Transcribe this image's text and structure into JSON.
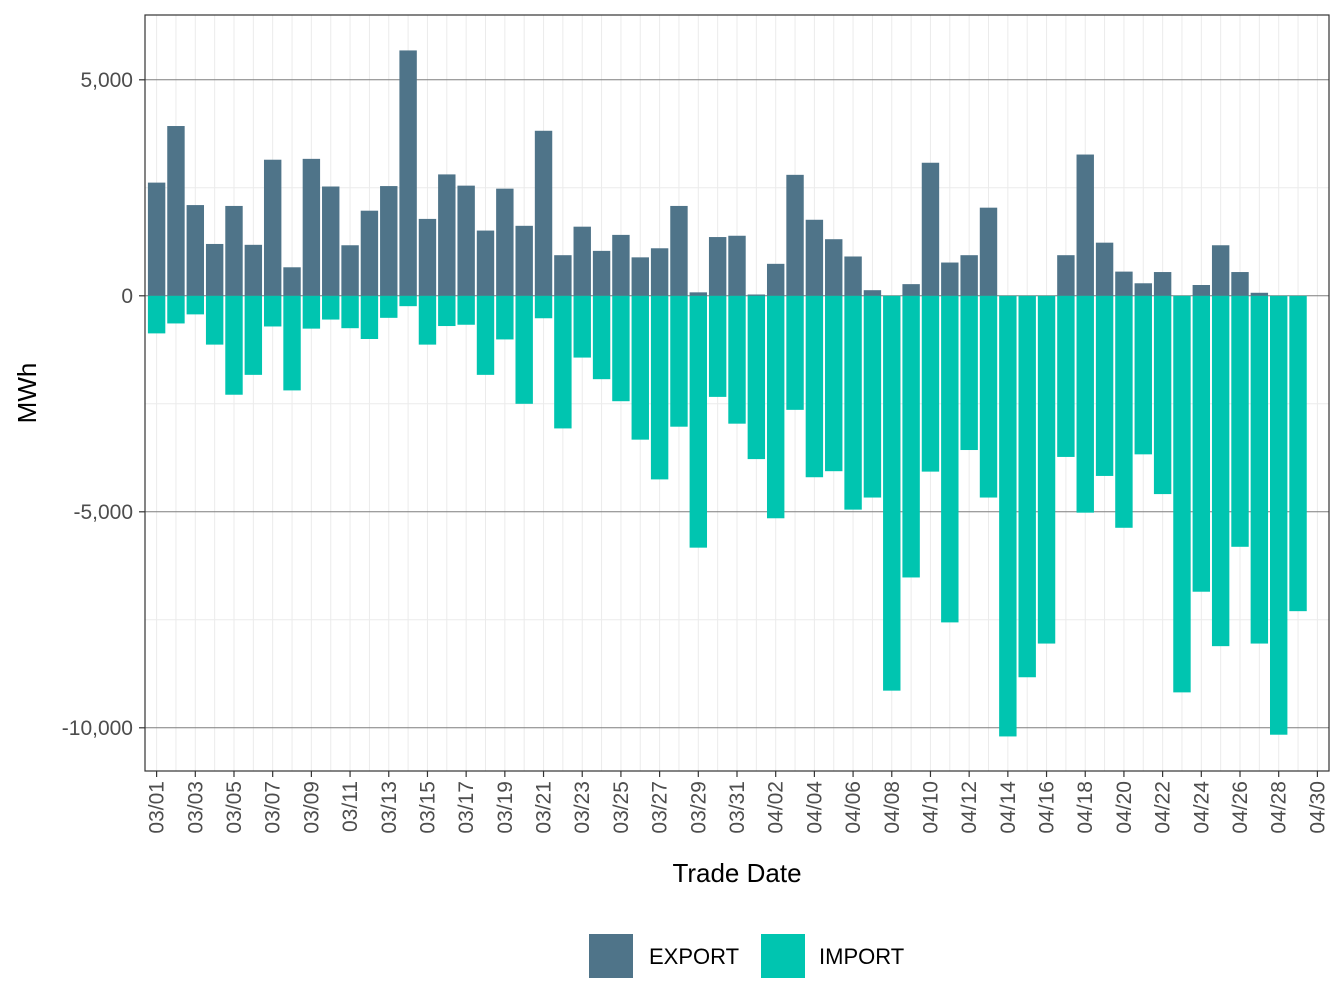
{
  "chart_data": {
    "type": "bar",
    "stacked": true,
    "title": "",
    "xlabel": "Trade Date",
    "ylabel": "MWh",
    "ylim": [
      -11000,
      6500
    ],
    "yticks": [
      5000,
      0,
      -5000,
      -10000
    ],
    "ytick_labels": [
      "5,000",
      "0",
      "-5,000",
      "-10,000"
    ],
    "grid": true,
    "legend_position": "bottom",
    "categories": [
      "03/01",
      "03/02",
      "03/03",
      "03/04",
      "03/05",
      "03/06",
      "03/07",
      "03/08",
      "03/09",
      "03/10",
      "03/11",
      "03/12",
      "03/13",
      "03/14",
      "03/15",
      "03/16",
      "03/17",
      "03/18",
      "03/19",
      "03/20",
      "03/21",
      "03/22",
      "03/23",
      "03/24",
      "03/25",
      "03/26",
      "03/27",
      "03/28",
      "03/29",
      "03/30",
      "03/31",
      "04/01",
      "04/02",
      "04/03",
      "04/04",
      "04/05",
      "04/06",
      "04/07",
      "04/08",
      "04/09",
      "04/10",
      "04/11",
      "04/12",
      "04/13",
      "04/14",
      "04/15",
      "04/16",
      "04/17",
      "04/18",
      "04/19",
      "04/20",
      "04/21",
      "04/22",
      "04/23",
      "04/24",
      "04/25",
      "04/26",
      "04/27",
      "04/28",
      "04/29",
      "04/30"
    ],
    "xtick_labels": [
      "03/01",
      "03/03",
      "03/05",
      "03/07",
      "03/09",
      "03/11",
      "03/13",
      "03/15",
      "03/17",
      "03/19",
      "03/21",
      "03/23",
      "03/25",
      "03/27",
      "03/29",
      "03/31",
      "04/02",
      "04/04",
      "04/06",
      "04/08",
      "04/10",
      "04/12",
      "04/14",
      "04/16",
      "04/18",
      "04/20",
      "04/22",
      "04/24",
      "04/26",
      "04/28",
      "04/30"
    ],
    "series": [
      {
        "name": "EXPORT",
        "color": "#4f7489",
        "values": [
          2620,
          3930,
          2100,
          1200,
          2080,
          1180,
          3150,
          660,
          3170,
          2530,
          1170,
          1970,
          2540,
          5680,
          1780,
          2810,
          2550,
          1510,
          2480,
          1620,
          3820,
          940,
          1600,
          1040,
          1410,
          890,
          1100,
          2080,
          80,
          1360,
          1390,
          30,
          740,
          2800,
          1760,
          1310,
          910,
          130,
          0,
          270,
          3080,
          770,
          940,
          2040,
          0,
          0,
          0,
          940,
          3270,
          1230,
          560,
          290,
          550,
          0,
          250,
          1170,
          550,
          70,
          0,
          0,
          0
        ]
      },
      {
        "name": "IMPORT",
        "color": "#00c5b0",
        "values": [
          -870,
          -640,
          -430,
          -1130,
          -2290,
          -1830,
          -710,
          -2190,
          -760,
          -550,
          -750,
          -1000,
          -510,
          -240,
          -1130,
          -700,
          -670,
          -1830,
          -1010,
          -2500,
          -520,
          -3070,
          -1430,
          -1930,
          -2440,
          -3330,
          -4250,
          -3030,
          -5830,
          -2340,
          -2960,
          -3780,
          -5150,
          -2640,
          -4200,
          -4060,
          -4950,
          -4670,
          -9140,
          -6520,
          -4070,
          -7560,
          -3570,
          -4670,
          -10200,
          -8830,
          -8050,
          -3730,
          -5020,
          -4170,
          -5370,
          -3670,
          -4590,
          -9180,
          -6850,
          -8110,
          -5810,
          -8050,
          -10160,
          -7300,
          0
        ]
      }
    ]
  }
}
